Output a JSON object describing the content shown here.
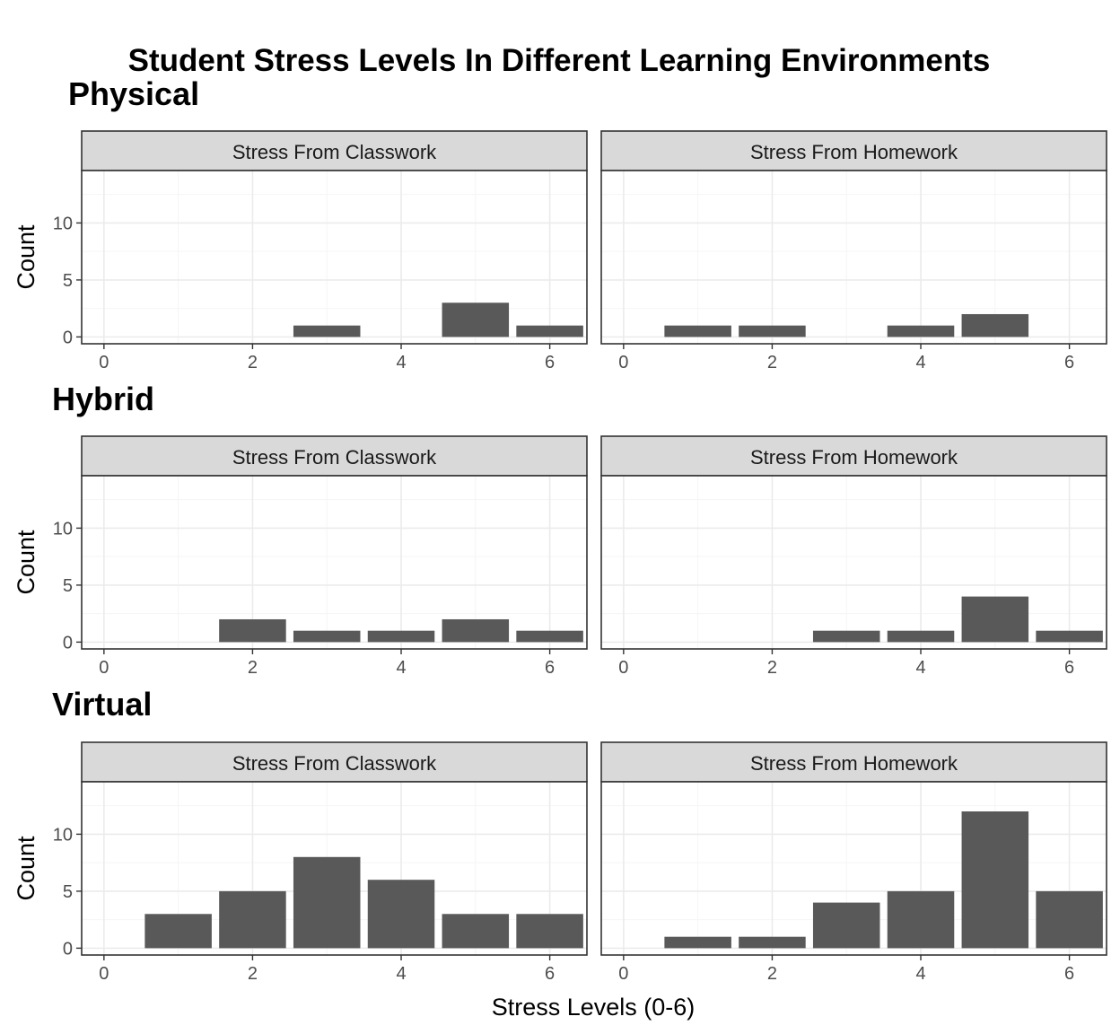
{
  "title": "Student Stress Levels In Different Learning Environments",
  "xlabel": "Stress Levels (0-6)",
  "ylabel": "Count",
  "colors": {
    "bar": "#595959",
    "strip_fill": "#d9d9d9",
    "panel_border": "#333333",
    "grid_major": "#ebebeb",
    "grid_minor": "#f5f5f5",
    "tick_text": "#4d4d4d"
  },
  "chart_data": {
    "type": "bar",
    "x_ticks": [
      0,
      2,
      4,
      6
    ],
    "y_ticks": [
      0,
      5,
      10
    ],
    "xlim": [
      -0.3,
      6.5
    ],
    "ylim": [
      -0.6,
      14.6
    ],
    "grid": true,
    "groups": [
      {
        "name": "Physical",
        "panels": [
          {
            "strip": "Stress From Classwork",
            "x": [
              3,
              5,
              6
            ],
            "values": [
              1,
              3,
              1
            ]
          },
          {
            "strip": "Stress From Homework",
            "x": [
              1,
              2,
              4,
              5
            ],
            "values": [
              1,
              1,
              1,
              2
            ]
          }
        ]
      },
      {
        "name": "Hybrid",
        "panels": [
          {
            "strip": "Stress From Classwork",
            "x": [
              2,
              3,
              4,
              5,
              6
            ],
            "values": [
              2,
              1,
              1,
              2,
              1
            ]
          },
          {
            "strip": "Stress From Homework",
            "x": [
              3,
              4,
              5,
              6
            ],
            "values": [
              1,
              1,
              4,
              1
            ]
          }
        ]
      },
      {
        "name": "Virtual",
        "panels": [
          {
            "strip": "Stress From Classwork",
            "x": [
              1,
              2,
              3,
              4,
              5,
              6
            ],
            "values": [
              3,
              5,
              8,
              6,
              3,
              3
            ]
          },
          {
            "strip": "Stress From Homework",
            "x": [
              1,
              2,
              3,
              4,
              5,
              6
            ],
            "values": [
              1,
              1,
              4,
              5,
              12,
              5
            ]
          }
        ]
      }
    ]
  }
}
